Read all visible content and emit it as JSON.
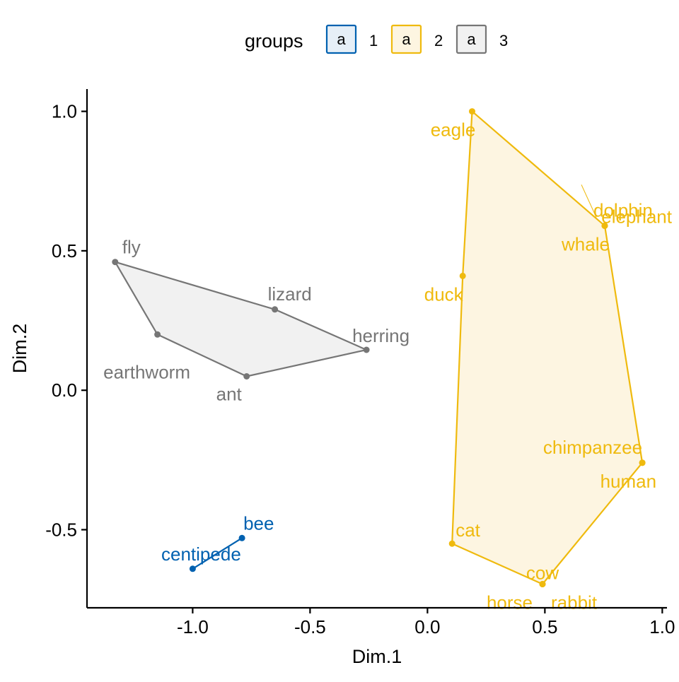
{
  "chart_data": {
    "type": "scatter",
    "xlabel": "Dim.1",
    "ylabel": "Dim.2",
    "xlim": [
      -1.45,
      1.02
    ],
    "ylim": [
      -0.78,
      1.08
    ],
    "x_ticks": [
      -1.0,
      -0.5,
      0.0,
      0.5,
      1.0
    ],
    "x_tick_labels": [
      "-1.0",
      "-0.5",
      "0.0",
      "0.5",
      "1.0"
    ],
    "y_ticks": [
      -0.5,
      0.0,
      0.5,
      1.0
    ],
    "y_tick_labels": [
      "-0.5",
      "0.0",
      "0.5",
      "1.0"
    ],
    "grid": false,
    "legend": {
      "title": "groups",
      "placement": "top",
      "entries": [
        {
          "label": "1",
          "glyph": "a"
        },
        {
          "label": "2",
          "glyph": "a"
        },
        {
          "label": "3",
          "glyph": "a"
        }
      ]
    },
    "series": [
      {
        "name": "1",
        "color": "#0061B0",
        "fill": "#E6EFF7",
        "hull": [
          "centipede",
          "bee"
        ],
        "points": [
          {
            "label": "bee",
            "x": -0.79,
            "y": -0.53
          },
          {
            "label": "centipede",
            "x": -1.0,
            "y": -0.64
          }
        ]
      },
      {
        "name": "2",
        "color": "#EFBA0E",
        "fill": "#FDF5E1",
        "hull": [
          "eagle",
          "dolphin",
          "chimpanzee",
          "horse",
          "cat",
          "duck"
        ],
        "points": [
          {
            "label": "eagle",
            "x": 0.19,
            "y": 1.0
          },
          {
            "label": "elephant",
            "x": 0.755,
            "y": 0.59
          },
          {
            "label": "dolphin",
            "x": 0.755,
            "y": 0.59
          },
          {
            "label": "whale",
            "x": 0.755,
            "y": 0.59
          },
          {
            "label": "duck",
            "x": 0.15,
            "y": 0.41
          },
          {
            "label": "chimpanzee",
            "x": 0.915,
            "y": -0.26
          },
          {
            "label": "human",
            "x": 0.915,
            "y": -0.26
          },
          {
            "label": "cat",
            "x": 0.105,
            "y": -0.55
          },
          {
            "label": "cow",
            "x": 0.49,
            "y": -0.695
          },
          {
            "label": "horse",
            "x": 0.49,
            "y": -0.695
          },
          {
            "label": "rabbit",
            "x": 0.49,
            "y": -0.695
          }
        ]
      },
      {
        "name": "3",
        "color": "#767676",
        "fill": "#F1F1F1",
        "hull": [
          "fly",
          "lizard",
          "herring",
          "ant",
          "earthworm"
        ],
        "points": [
          {
            "label": "fly",
            "x": -1.33,
            "y": 0.46
          },
          {
            "label": "lizard",
            "x": -0.65,
            "y": 0.29
          },
          {
            "label": "herring",
            "x": -0.26,
            "y": 0.145
          },
          {
            "label": "earthworm",
            "x": -1.15,
            "y": 0.2
          },
          {
            "label": "ant",
            "x": -0.77,
            "y": 0.05
          }
        ]
      }
    ]
  }
}
